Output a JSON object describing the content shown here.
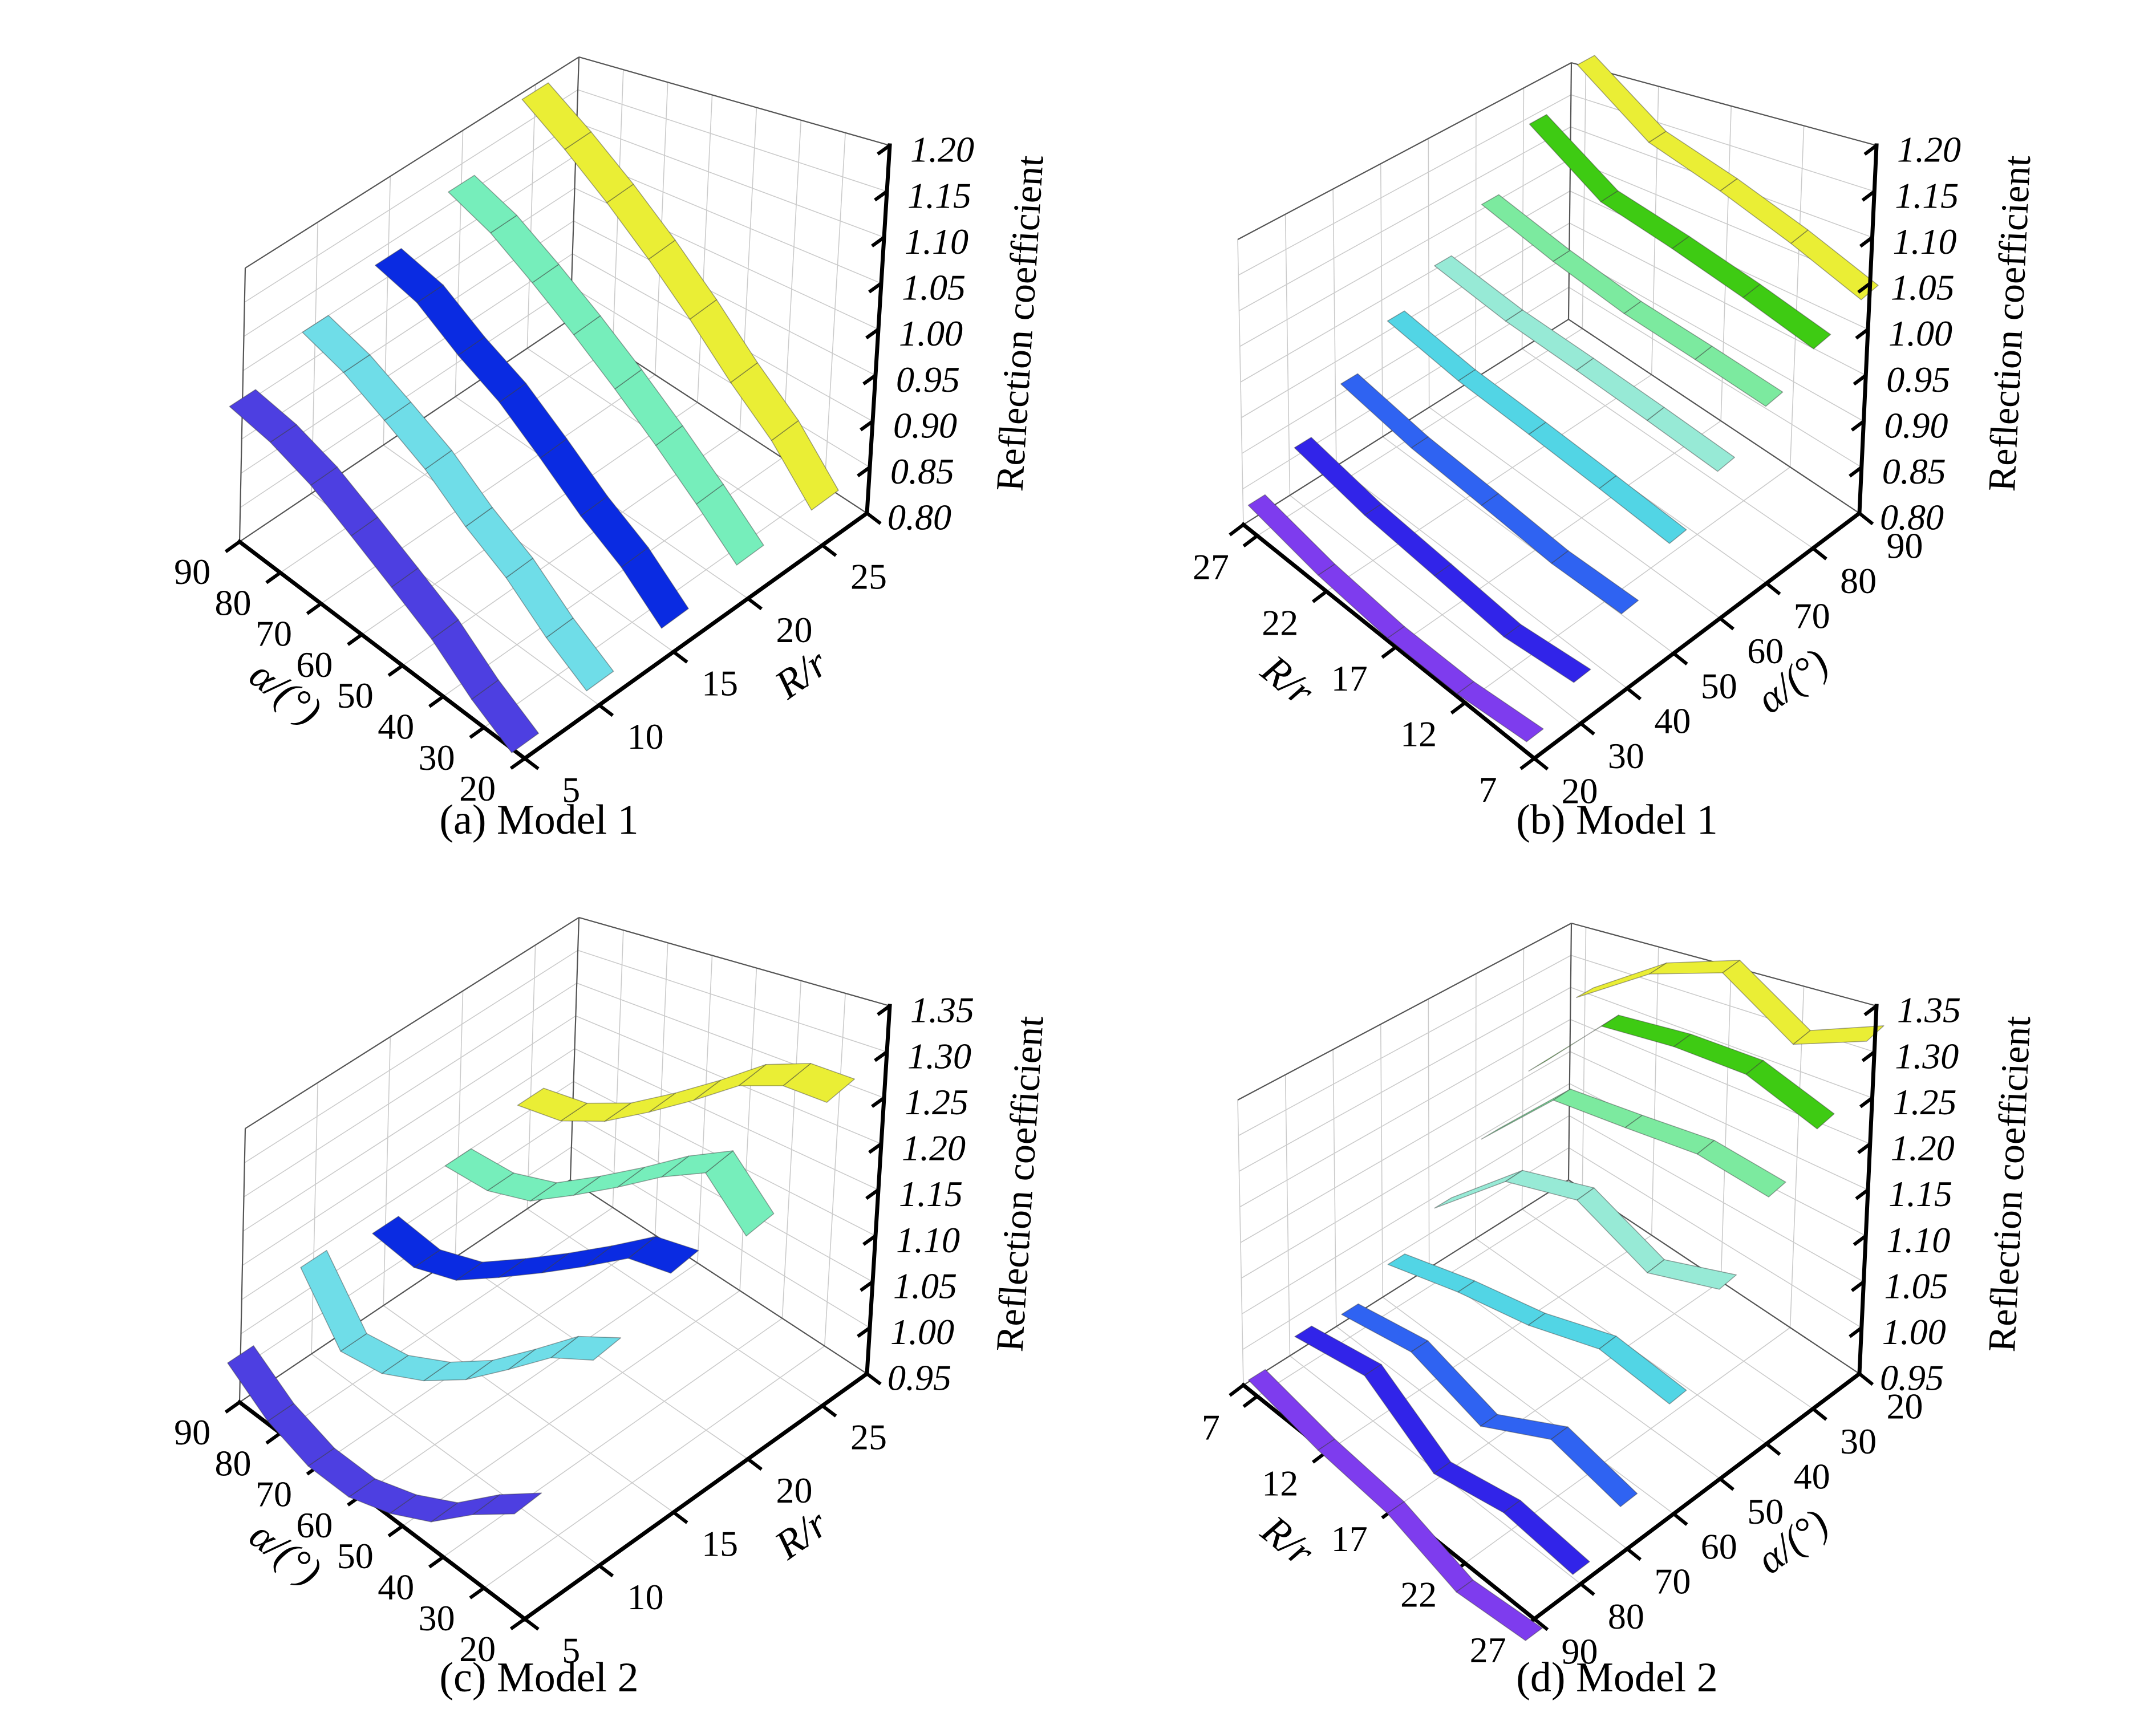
{
  "figure": {
    "background": "#ffffff"
  },
  "captions": {
    "a": "(a) Model 1",
    "b": "(b) Model 1",
    "c": "(c) Model 2",
    "d": "(d) Model 2"
  },
  "chart_data": [
    {
      "id": "a",
      "type": "ribbon3d",
      "title": "(a) Model 1",
      "xlabel": "α/(°)",
      "ylabel": "R/r",
      "zlabel": "Reflection coefficient",
      "ribbons_along": "alpha",
      "alpha_ticks": [
        20,
        30,
        40,
        50,
        60,
        70,
        80,
        90
      ],
      "rr_ticks": [
        5,
        10,
        15,
        20,
        25
      ],
      "x": [
        20,
        30,
        40,
        50,
        60,
        70,
        80,
        90
      ],
      "zlim": [
        0.8,
        1.2
      ],
      "ztick_step": 0.05,
      "z_ticks": [
        0.8,
        0.85,
        0.9,
        0.95,
        1.0,
        1.05,
        1.1,
        1.15,
        1.2
      ],
      "series": [
        {
          "name": "R/r=5",
          "fixed": 5,
          "color": "#4d3fe1",
          "values": [
            0.82,
            0.85,
            0.89,
            0.92,
            0.95,
            0.98,
            1.0,
            1.01
          ]
        },
        {
          "name": "R/r=10",
          "fixed": 10,
          "color": "#6fdde8",
          "values": [
            0.83,
            0.86,
            0.9,
            0.93,
            0.97,
            1.0,
            1.03,
            1.05
          ]
        },
        {
          "name": "R/r=15",
          "fixed": 15,
          "color": "#0a2be2",
          "values": [
            0.84,
            0.88,
            0.91,
            0.95,
            0.99,
            1.02,
            1.06,
            1.08
          ]
        },
        {
          "name": "R/r=20",
          "fixed": 20,
          "color": "#76eebb",
          "values": [
            0.85,
            0.89,
            0.93,
            0.97,
            1.01,
            1.05,
            1.09,
            1.12
          ]
        },
        {
          "name": "R/r=25",
          "fixed": 25,
          "color": "#eaee35",
          "values": [
            0.85,
            0.9,
            0.94,
            0.99,
            1.04,
            1.09,
            1.14,
            1.19
          ]
        }
      ]
    },
    {
      "id": "b",
      "type": "ribbon3d",
      "title": "(b) Model 1",
      "xlabel": "α/(°)",
      "ylabel": "R/r",
      "zlabel": "Reflection coefficient",
      "ribbons_along": "R/r",
      "alpha_ticks": [
        20,
        30,
        40,
        50,
        60,
        70,
        80,
        90
      ],
      "rr_ticks": [
        7,
        12,
        17,
        22,
        27
      ],
      "x": [
        7,
        12,
        17,
        22,
        27
      ],
      "zlim": [
        0.8,
        1.2
      ],
      "ztick_step": 0.05,
      "z_ticks": [
        0.8,
        0.85,
        0.9,
        0.95,
        1.0,
        1.05,
        1.1,
        1.15,
        1.2
      ],
      "series": [
        {
          "name": "α=20°",
          "fixed": 20,
          "color": "#7e3cee",
          "values": [
            0.83,
            0.82,
            0.82,
            0.83,
            0.85
          ]
        },
        {
          "name": "α=30°",
          "fixed": 30,
          "color": "#3124e9",
          "values": [
            0.86,
            0.85,
            0.86,
            0.87,
            0.89
          ]
        },
        {
          "name": "α=40°",
          "fixed": 40,
          "color": "#2f63f2",
          "values": [
            0.9,
            0.9,
            0.91,
            0.92,
            0.94
          ]
        },
        {
          "name": "α=50°",
          "fixed": 50,
          "color": "#52d5e5",
          "values": [
            0.94,
            0.95,
            0.96,
            0.97,
            0.99
          ]
        },
        {
          "name": "α=60°",
          "fixed": 60,
          "color": "#97ead6",
          "values": [
            0.98,
            0.99,
            1.0,
            1.01,
            1.03
          ]
        },
        {
          "name": "α=70°",
          "fixed": 70,
          "color": "#7cea9f",
          "values": [
            1.01,
            1.02,
            1.03,
            1.05,
            1.08
          ]
        },
        {
          "name": "α=80°",
          "fixed": 80,
          "color": "#3ecb13",
          "values": [
            1.03,
            1.05,
            1.07,
            1.09,
            1.16
          ]
        },
        {
          "name": "α=90°",
          "fixed": 90,
          "color": "#eaee35",
          "values": [
            1.04,
            1.07,
            1.1,
            1.13,
            1.21
          ]
        }
      ]
    },
    {
      "id": "c",
      "type": "ribbon3d",
      "title": "(c) Model 2",
      "xlabel": "α/(°)",
      "ylabel": "R/r",
      "zlabel": "Reflection coefficient",
      "ribbons_along": "alpha",
      "alpha_ticks": [
        20,
        30,
        40,
        50,
        60,
        70,
        80,
        90
      ],
      "rr_ticks": [
        5,
        10,
        15,
        20,
        25
      ],
      "x": [
        20,
        30,
        40,
        50,
        60,
        70,
        80,
        90
      ],
      "zlim": [
        0.95,
        1.35
      ],
      "ztick_step": 0.05,
      "z_ticks": [
        0.95,
        1.0,
        1.05,
        1.1,
        1.15,
        1.2,
        1.25,
        1.3,
        1.35
      ],
      "series": [
        {
          "name": "R/r=5",
          "fixed": 5,
          "color": "#4d3fe1",
          "values": [
            1.1,
            1.06,
            1.01,
            0.98,
            0.96,
            0.96,
            0.98,
            1.02
          ]
        },
        {
          "name": "R/r=10",
          "fixed": 10,
          "color": "#6fdde8",
          "values": [
            1.22,
            1.19,
            1.14,
            1.09,
            1.05,
            1.02,
            1.01,
            1.09
          ]
        },
        {
          "name": "R/r=15",
          "fixed": 15,
          "color": "#0a2be2",
          "values": [
            1.25,
            1.24,
            1.2,
            1.16,
            1.12,
            1.08,
            1.06,
            1.07
          ]
        },
        {
          "name": "R/r=20",
          "fixed": 20,
          "color": "#76eebb",
          "values": [
            1.22,
            1.27,
            1.24,
            1.2,
            1.16,
            1.12,
            1.1,
            1.1
          ]
        },
        {
          "name": "R/r=25",
          "fixed": 25,
          "color": "#eaee35",
          "values": [
            1.3,
            1.3,
            1.28,
            1.24,
            1.2,
            1.16,
            1.13,
            1.12
          ]
        }
      ]
    },
    {
      "id": "d",
      "type": "ribbon3d",
      "title": "(d) Model 2",
      "xlabel": "α/(°)",
      "ylabel": "R/r",
      "zlabel": "Reflection coefficient",
      "ribbons_along": "R/r",
      "alpha_ticks": [
        90,
        80,
        70,
        60,
        50,
        40,
        30,
        20
      ],
      "rr_ticks": [
        27,
        22,
        17,
        12,
        7
      ],
      "x": [
        7,
        12,
        17,
        22,
        27
      ],
      "zlim": [
        0.95,
        1.35
      ],
      "ztick_step": 0.05,
      "z_ticks": [
        0.95,
        1.0,
        1.05,
        1.1,
        1.15,
        1.2,
        1.25,
        1.3,
        1.35
      ],
      "series": [
        {
          "name": "α=20°",
          "fixed": 20,
          "color": "#eaee35",
          "values": [
            1.25,
            1.32,
            1.35,
            1.29,
            1.32
          ]
        },
        {
          "name": "α=30°",
          "fixed": 30,
          "color": "#3ecb13",
          "values": [
            1.18,
            1.29,
            1.3,
            1.3,
            1.27
          ]
        },
        {
          "name": "α=40°",
          "fixed": 40,
          "color": "#7cea9f",
          "values": [
            1.12,
            1.23,
            1.24,
            1.25,
            1.24
          ]
        },
        {
          "name": "α=50°",
          "fixed": 50,
          "color": "#97ead6",
          "values": [
            1.06,
            1.16,
            1.19,
            1.15,
            1.18
          ]
        },
        {
          "name": "α=60°",
          "fixed": 60,
          "color": "#52d5e5",
          "values": [
            1.02,
            1.05,
            1.07,
            1.1,
            1.09
          ]
        },
        {
          "name": "α=70°",
          "fixed": 70,
          "color": "#2f63f2",
          "values": [
            0.99,
            1.01,
            0.98,
            1.03,
            1.01
          ]
        },
        {
          "name": "α=80°",
          "fixed": 80,
          "color": "#3124e9",
          "values": [
            1.0,
            1.02,
            0.96,
            0.98,
            0.97
          ]
        },
        {
          "name": "α=90°",
          "fixed": 90,
          "color": "#7e3cee",
          "values": [
            0.98,
            0.96,
            0.95,
            0.92,
            0.93
          ]
        }
      ]
    }
  ]
}
